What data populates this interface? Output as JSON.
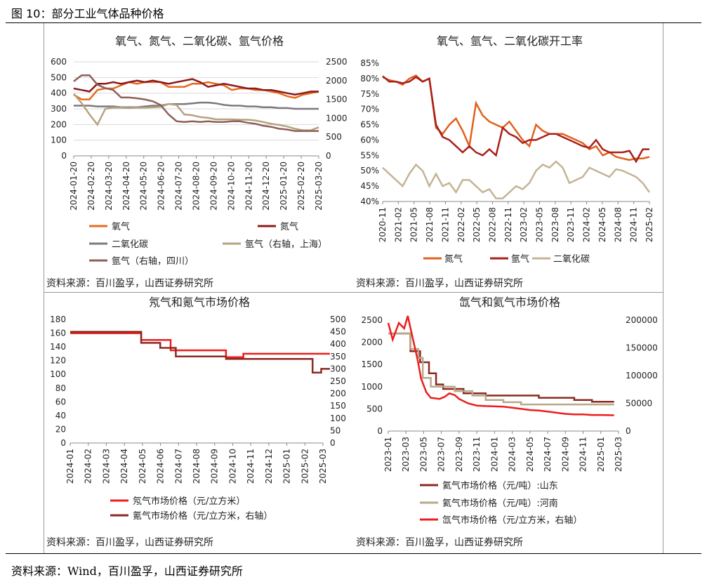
{
  "figure_title": "图 10：部分工业气体品种价格",
  "source_note": "资料来源：Wind，百川盈孚，山西证券研究所",
  "colors": {
    "oxygen": "#E86A1F",
    "nitrogen": "#8B1A1A",
    "co2": "#7D7880",
    "argon_sh": "#B5A37E",
    "argon_sc": "#8E6058",
    "op_nitrogen": "#E0601E",
    "op_argon": "#A8201A",
    "op_co2": "#C4B495",
    "neon": "#EE1C1C",
    "krypton": "#8B2A20",
    "ammonia_sd": "#8B2A20",
    "ammonia_hn": "#B8A88C",
    "helium": "#EE1C1C"
  },
  "chart_data": [
    {
      "type": "line",
      "title": "氧气、氮气、二氧化碳、氩气价格",
      "x_ticks": [
        "2024-01-20",
        "2024-02-20",
        "2024-03-20",
        "2024-04-20",
        "2024-05-20",
        "2024-06-20",
        "2024-07-20",
        "2024-08-20",
        "2024-09-20",
        "2024-10-20",
        "2024-11-20",
        "2024-12-20",
        "2025-01-20",
        "2025-02-20",
        "2025-03-20"
      ],
      "ylim_left": [
        0,
        600
      ],
      "ylim_right": [
        0,
        2500
      ],
      "yticks_left": [
        "0",
        "100",
        "200",
        "300",
        "400",
        "500",
        "600"
      ],
      "yticks_right": [
        "0",
        "500",
        "1000",
        "1500",
        "2000",
        "2500"
      ],
      "series": [
        {
          "name": "氧气",
          "axis": "left",
          "color_key": "oxygen",
          "values": [
            390,
            360,
            360,
            420,
            430,
            430,
            450,
            470,
            460,
            470,
            470,
            470,
            440,
            440,
            440,
            460,
            460,
            470,
            460,
            450,
            420,
            430,
            430,
            420,
            420,
            410,
            400,
            380,
            370,
            390,
            400,
            410
          ]
        },
        {
          "name": "氮气",
          "axis": "left",
          "color_key": "nitrogen",
          "values": [
            430,
            420,
            410,
            460,
            460,
            470,
            460,
            470,
            480,
            470,
            480,
            470,
            460,
            470,
            480,
            490,
            470,
            440,
            450,
            460,
            450,
            440,
            430,
            430,
            420,
            420,
            410,
            400,
            390,
            400,
            410,
            410
          ]
        },
        {
          "name": "二氧化碳",
          "axis": "left",
          "color_key": "co2",
          "values": [
            320,
            320,
            320,
            315,
            315,
            315,
            310,
            310,
            310,
            315,
            320,
            320,
            330,
            330,
            330,
            335,
            340,
            340,
            335,
            325,
            320,
            320,
            315,
            315,
            310,
            310,
            305,
            305,
            300,
            300,
            300,
            300
          ]
        },
        {
          "name": "氩气（右轴，上海）",
          "axis": "right",
          "color_key": "argon_sh",
          "values": [
            1650,
            1400,
            1100,
            830,
            1250,
            1280,
            1280,
            1270,
            1280,
            1280,
            1290,
            1300,
            1380,
            1350,
            1100,
            1080,
            1030,
            1010,
            970,
            970,
            970,
            960,
            960,
            940,
            900,
            850,
            820,
            780,
            720,
            680,
            680,
            760
          ]
        },
        {
          "name": "氩气（右轴，四川）",
          "axis": "right",
          "color_key": "argon_sc",
          "values": [
            1980,
            2140,
            2140,
            1890,
            1800,
            1750,
            1550,
            1550,
            1530,
            1500,
            1450,
            1350,
            1100,
            920,
            900,
            920,
            900,
            920,
            900,
            900,
            920,
            920,
            880,
            850,
            800,
            770,
            720,
            700,
            660,
            660,
            660,
            660
          ]
        }
      ],
      "legend": [
        "氧气",
        "氮气",
        "二氧化碳",
        "氩气（右轴，上海）",
        "氩气（右轴，四川）"
      ],
      "source": "资料来源：百川盈孚，山西证券研究所"
    },
    {
      "type": "line",
      "title": "氧气、氩气、二氧化碳开工率",
      "x_ticks": [
        "2020-11",
        "2021-02",
        "2021-05",
        "2021-08",
        "2021-11",
        "2022-02",
        "2022-05",
        "2022-08",
        "2022-11",
        "2023-02",
        "2023-05",
        "2023-08",
        "2023-11",
        "2024-02",
        "2024-05",
        "2024-08",
        "2024-11",
        "2025-02"
      ],
      "ylim": [
        0.4,
        0.85
      ],
      "yticks": [
        "40%",
        "45%",
        "50%",
        "55%",
        "60%",
        "65%",
        "70%",
        "75%",
        "80%",
        "85%"
      ],
      "series": [
        {
          "name": "氮气",
          "color_key": "op_nitrogen",
          "values": [
            0.805,
            0.795,
            0.79,
            0.78,
            0.8,
            0.81,
            0.79,
            0.8,
            0.64,
            0.62,
            0.65,
            0.67,
            0.63,
            0.58,
            0.72,
            0.68,
            0.66,
            0.65,
            0.64,
            0.66,
            0.63,
            0.6,
            0.58,
            0.65,
            0.63,
            0.62,
            0.62,
            0.62,
            0.61,
            0.6,
            0.59,
            0.57,
            0.58,
            0.55,
            0.56,
            0.545,
            0.54,
            0.535,
            0.54,
            0.54,
            0.545
          ]
        },
        {
          "name": "氩气",
          "color_key": "op_argon",
          "values": [
            0.808,
            0.79,
            0.79,
            0.785,
            0.79,
            0.805,
            0.79,
            0.8,
            0.65,
            0.61,
            0.6,
            0.58,
            0.56,
            0.58,
            0.56,
            0.55,
            0.57,
            0.55,
            0.64,
            0.62,
            0.61,
            0.59,
            0.6,
            0.6,
            0.61,
            0.62,
            0.62,
            0.61,
            0.6,
            0.59,
            0.58,
            0.575,
            0.6,
            0.57,
            0.56,
            0.56,
            0.56,
            0.565,
            0.53,
            0.57,
            0.57
          ]
        },
        {
          "name": "二氧化碳",
          "color_key": "op_co2",
          "values": [
            0.51,
            0.49,
            0.47,
            0.45,
            0.49,
            0.52,
            0.5,
            0.45,
            0.49,
            0.45,
            0.46,
            0.43,
            0.47,
            0.47,
            0.45,
            0.43,
            0.44,
            0.41,
            0.41,
            0.43,
            0.45,
            0.44,
            0.46,
            0.5,
            0.52,
            0.51,
            0.53,
            0.51,
            0.46,
            0.47,
            0.48,
            0.51,
            0.5,
            0.49,
            0.48,
            0.505,
            0.5,
            0.49,
            0.48,
            0.46,
            0.43
          ]
        }
      ],
      "legend": [
        "氮气",
        "氩气",
        "二氧化碳"
      ],
      "source": "资料来源：百川盈孚，山西证券研究所"
    },
    {
      "type": "line",
      "title": "氖气和氪气市场价格",
      "x_ticks": [
        "2024-01",
        "2024-02",
        "2024-03",
        "2024-04",
        "2024-05",
        "2024-06",
        "2024-07",
        "2024-08",
        "2024-09",
        "2024-10",
        "2024-11",
        "2024-12",
        "2025-01",
        "2025-02",
        "2025-03"
      ],
      "ylim_left": [
        0,
        180
      ],
      "ylim_right": [
        0,
        500
      ],
      "yticks_left": [
        "0",
        "20",
        "40",
        "60",
        "80",
        "100",
        "120",
        "140",
        "160",
        "180"
      ],
      "yticks_right": [
        "0",
        "50",
        "100",
        "150",
        "200",
        "250",
        "300",
        "350",
        "400",
        "450",
        "500"
      ],
      "series": [
        {
          "name": "氖气市场价格（元/立方米）",
          "axis": "left",
          "color_key": "neon",
          "steps": [
            [
              0,
              160
            ],
            [
              4.1,
              160
            ],
            [
              4.1,
              150
            ],
            [
              5.8,
              150
            ],
            [
              5.8,
              135
            ],
            [
              9.0,
              135
            ],
            [
              9.0,
              125
            ],
            [
              10.0,
              125
            ],
            [
              10.0,
              130
            ],
            [
              15,
              130
            ]
          ]
        },
        {
          "name": "氪气市场价格（元/立方米，右轴）",
          "axis": "right",
          "color_key": "krypton",
          "steps": [
            [
              0,
              450
            ],
            [
              4.1,
              450
            ],
            [
              4.1,
              405
            ],
            [
              5.2,
              405
            ],
            [
              5.2,
              385
            ],
            [
              6.1,
              385
            ],
            [
              6.1,
              350
            ],
            [
              9.0,
              350
            ],
            [
              9.0,
              340
            ],
            [
              14.0,
              340
            ],
            [
              14.0,
              285
            ],
            [
              14.5,
              285
            ],
            [
              14.5,
              300
            ],
            [
              15,
              300
            ]
          ]
        }
      ],
      "legend": [
        "氖气市场价格（元/立方米）",
        "氪气市场价格（元/立方米，右轴）"
      ],
      "source": "资料来源：百川盈孚，山西证券研究所"
    },
    {
      "type": "line",
      "title": "氙气和氦气市场价格",
      "x_ticks": [
        "2023-01",
        "2023-03",
        "2023-05",
        "2023-07",
        "2023-09",
        "2023-11",
        "2024-01",
        "2024-03",
        "2024-05",
        "2024-07",
        "2024-09",
        "2024-11",
        "2025-01",
        "2025-03"
      ],
      "ylim_left": [
        0,
        2500
      ],
      "ylim_right": [
        0,
        200000
      ],
      "yticks_left": [
        "0",
        "500",
        "1000",
        "1500",
        "2000",
        "2500"
      ],
      "yticks_right": [
        "0",
        "50000",
        "100000",
        "150000",
        "200000"
      ],
      "series": [
        {
          "name": "氦气市场价格（元/吨）:山东",
          "axis": "left",
          "color_key": "ammonia_sd",
          "steps": [
            [
              0,
              2200
            ],
            [
              2.5,
              2200
            ],
            [
              2.5,
              1800
            ],
            [
              3.6,
              1800
            ],
            [
              3.6,
              1550
            ],
            [
              4.6,
              1550
            ],
            [
              4.6,
              1300
            ],
            [
              5.4,
              1300
            ],
            [
              5.4,
              1050
            ],
            [
              6.2,
              1050
            ],
            [
              6.2,
              950
            ],
            [
              8.5,
              950
            ],
            [
              8.5,
              850
            ],
            [
              11,
              850
            ],
            [
              11,
              800
            ],
            [
              17,
              800
            ],
            [
              17,
              750
            ],
            [
              21,
              750
            ],
            [
              21,
              700
            ],
            [
              23,
              700
            ],
            [
              23,
              660
            ],
            [
              25.5,
              660
            ]
          ]
        },
        {
          "name": "氦气市场价格（元/吨）:河南",
          "axis": "left",
          "color_key": "ammonia_hn",
          "steps": [
            [
              0,
              2200
            ],
            [
              2.5,
              2200
            ],
            [
              2.5,
              1850
            ],
            [
              3.4,
              1850
            ],
            [
              3.4,
              1650
            ],
            [
              3.9,
              1650
            ],
            [
              3.9,
              1200
            ],
            [
              4.8,
              1200
            ],
            [
              4.8,
              1000
            ],
            [
              7.5,
              1000
            ],
            [
              7.5,
              900
            ],
            [
              9.5,
              900
            ],
            [
              9.5,
              800
            ],
            [
              11,
              800
            ],
            [
              11,
              700
            ],
            [
              13,
              700
            ],
            [
              13,
              650
            ],
            [
              15,
              650
            ],
            [
              15,
              600
            ],
            [
              25.5,
              600
            ]
          ]
        },
        {
          "name": "氙气市场价格（元/立方米，右轴）",
          "axis": "right",
          "color_key": "helium",
          "values": [
            [
              0,
              195000
            ],
            [
              0.5,
              165000
            ],
            [
              1.2,
              195000
            ],
            [
              1.8,
              185000
            ],
            [
              2.2,
              208000
            ],
            [
              2.8,
              165000
            ],
            [
              3.3,
              130000
            ],
            [
              3.7,
              95000
            ],
            [
              4.3,
              70000
            ],
            [
              4.8,
              60000
            ],
            [
              5.8,
              58000
            ],
            [
              6.4,
              62000
            ],
            [
              6.9,
              68000
            ],
            [
              7.5,
              65000
            ],
            [
              8,
              58000
            ],
            [
              9,
              50000
            ],
            [
              10,
              46000
            ],
            [
              11,
              45000
            ],
            [
              13,
              44000
            ],
            [
              14,
              42000
            ],
            [
              15,
              40000
            ],
            [
              16,
              38000
            ],
            [
              17,
              37000
            ],
            [
              18,
              35000
            ],
            [
              19,
              33000
            ],
            [
              20,
              31000
            ],
            [
              21,
              30000
            ],
            [
              22,
              30000
            ],
            [
              23,
              29000
            ],
            [
              24,
              29000
            ],
            [
              25.5,
              28500
            ]
          ]
        }
      ],
      "legend": [
        "氦气市场价格（元/吨）:山东",
        "氦气市场价格（元/吨）:河南",
        "氙气市场价格（元/立方米，右轴）"
      ],
      "source": "资料来源：百川盈孚，山西证券研究所"
    }
  ]
}
